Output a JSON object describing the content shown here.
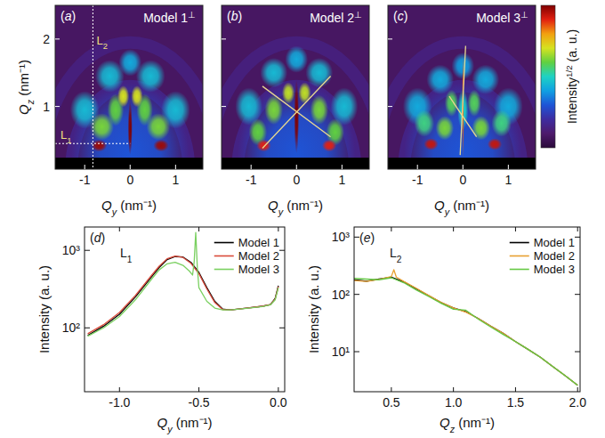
{
  "chart_data": [
    {
      "type": "heatmap",
      "panel": "(a)",
      "title": "Model 1⊥",
      "x_label": "Qy (nm⁻¹)",
      "y_label": "Qz (nm⁻¹)",
      "xlim": [
        -1.65,
        1.6
      ],
      "xticks": [
        -1,
        0,
        1
      ],
      "ylim": [
        0.07,
        2.5
      ],
      "yticks": [
        1,
        2
      ],
      "zlim": [
        0,
        1
      ],
      "background_value": 0.08,
      "mask_qz": [
        0.07,
        0.24
      ],
      "rings": [
        {
          "r": 1.3,
          "value": 0.17
        },
        {
          "r": 1.95,
          "value": 0.15
        }
      ],
      "spots": [
        {
          "qy": 0,
          "qz": 0.3,
          "wy": 1.3,
          "wz": 1.05,
          "value": 0.3
        },
        {
          "qy": -1.0,
          "qz": 0.95,
          "wy": 0.32,
          "wz": 0.28,
          "value": 0.45
        },
        {
          "qy": 1.0,
          "qz": 0.95,
          "wy": 0.32,
          "wz": 0.28,
          "value": 0.45
        },
        {
          "qy": -0.45,
          "qz": 1.45,
          "wy": 0.32,
          "wz": 0.24,
          "value": 0.45
        },
        {
          "qy": 0.45,
          "qz": 1.45,
          "wy": 0.32,
          "wz": 0.24,
          "value": 0.45
        },
        {
          "qy": 0,
          "qz": 1.65,
          "wy": 0.25,
          "wz": 0.2,
          "value": 0.42
        },
        {
          "qy": -0.62,
          "qz": 0.7,
          "wy": 0.26,
          "wz": 0.2,
          "value": 0.62
        },
        {
          "qy": 0.62,
          "qz": 0.7,
          "wy": 0.26,
          "wz": 0.2,
          "value": 0.62
        },
        {
          "qy": -0.32,
          "qz": 0.95,
          "wy": 0.18,
          "wz": 0.24,
          "value": 0.6
        },
        {
          "qy": 0.32,
          "qz": 0.95,
          "wy": 0.18,
          "wz": 0.24,
          "value": 0.6
        },
        {
          "qy": -0.15,
          "qz": 1.15,
          "wy": 0.13,
          "wz": 0.16,
          "value": 0.7
        },
        {
          "qy": 0.15,
          "qz": 1.15,
          "wy": 0.13,
          "wz": 0.16,
          "value": 0.7
        },
        {
          "qy": -0.68,
          "qz": 0.42,
          "wy": 0.17,
          "wz": 0.09,
          "value": 0.97
        },
        {
          "qy": 0.68,
          "qz": 0.42,
          "wy": 0.17,
          "wz": 0.09,
          "value": 0.97
        },
        {
          "qy": 0,
          "qz": 0.68,
          "wy": 0.05,
          "wz": 0.4,
          "value": 1.0
        }
      ],
      "cuts": [
        {
          "label": "L2",
          "qy": -0.82
        },
        {
          "label": "L1",
          "qz": 0.45
        }
      ]
    },
    {
      "type": "heatmap",
      "panel": "(b)",
      "title": "Model 2⊥",
      "x_label": "Qy (nm⁻¹)",
      "tick_labels": "x",
      "xlim": [
        -1.65,
        1.6
      ],
      "xticks": [
        -1,
        0,
        1
      ],
      "ylim": [
        0.07,
        2.5
      ],
      "yticks": [
        1,
        2
      ],
      "zlim": [
        0,
        1
      ],
      "background_value": 0.08,
      "mask_qz": [
        0.07,
        0.24
      ],
      "rings": [
        {
          "r": 1.3,
          "value": 0.17
        },
        {
          "r": 1.95,
          "value": 0.15
        }
      ],
      "spots": [
        {
          "qy": 0,
          "qz": 0.3,
          "wy": 1.3,
          "wz": 1.05,
          "value": 0.3
        },
        {
          "qy": -1.05,
          "qz": 1.0,
          "wy": 0.3,
          "wz": 0.28,
          "value": 0.45
        },
        {
          "qy": 1.05,
          "qz": 1.0,
          "wy": 0.3,
          "wz": 0.28,
          "value": 0.45
        },
        {
          "qy": -0.5,
          "qz": 1.5,
          "wy": 0.3,
          "wz": 0.22,
          "value": 0.45
        },
        {
          "qy": 0.5,
          "qz": 1.5,
          "wy": 0.3,
          "wz": 0.22,
          "value": 0.45
        },
        {
          "qy": 0,
          "qz": 1.7,
          "wy": 0.25,
          "wz": 0.2,
          "value": 0.42
        },
        {
          "qy": -0.85,
          "qz": 0.62,
          "wy": 0.2,
          "wz": 0.2,
          "value": 0.6
        },
        {
          "qy": 0.85,
          "qz": 0.62,
          "wy": 0.2,
          "wz": 0.2,
          "value": 0.6
        },
        {
          "qy": -0.5,
          "qz": 0.95,
          "wy": 0.2,
          "wz": 0.22,
          "value": 0.62
        },
        {
          "qy": 0.5,
          "qz": 0.95,
          "wy": 0.2,
          "wz": 0.22,
          "value": 0.62
        },
        {
          "qy": -0.18,
          "qz": 1.2,
          "wy": 0.14,
          "wz": 0.16,
          "value": 0.68
        },
        {
          "qy": 0.18,
          "qz": 1.2,
          "wy": 0.14,
          "wz": 0.16,
          "value": 0.68
        },
        {
          "qy": -0.72,
          "qz": 0.42,
          "wy": 0.16,
          "wz": 0.09,
          "value": 0.9
        },
        {
          "qy": 0.72,
          "qz": 0.42,
          "wy": 0.16,
          "wz": 0.09,
          "value": 0.9
        },
        {
          "qy": 0,
          "qz": 0.85,
          "wy": 0.055,
          "wz": 0.55,
          "value": 1.0
        }
      ],
      "lines": [
        {
          "qy": [
            -0.75,
            0.75
          ],
          "qz": [
            0.38,
            1.45
          ]
        },
        {
          "qy": [
            -0.75,
            0.75
          ],
          "qz": [
            1.3,
            0.55
          ]
        }
      ]
    },
    {
      "type": "heatmap",
      "panel": "(c)",
      "title": "Model 3⊥",
      "x_label": "Qy (nm⁻¹)",
      "tick_labels": "x",
      "xlim": [
        -1.65,
        1.6
      ],
      "xticks": [
        -1,
        0,
        1
      ],
      "ylim": [
        0.07,
        2.5
      ],
      "yticks": [
        1,
        2
      ],
      "zlim": [
        0,
        1
      ],
      "colorbar_label": "Intensity1/2 (a. u.)",
      "background_value": 0.08,
      "mask_qz": [
        0.07,
        0.24
      ],
      "rings": [
        {
          "r": 1.3,
          "value": 0.17
        },
        {
          "r": 1.95,
          "value": 0.15
        }
      ],
      "spots": [
        {
          "qy": 0,
          "qz": 0.3,
          "wy": 1.3,
          "wz": 1.05,
          "value": 0.3
        },
        {
          "qy": -1.0,
          "qz": 1.0,
          "wy": 0.32,
          "wz": 0.28,
          "value": 0.42
        },
        {
          "qy": 1.0,
          "qz": 1.0,
          "wy": 0.32,
          "wz": 0.28,
          "value": 0.42
        },
        {
          "qy": -0.5,
          "qz": 1.4,
          "wy": 0.3,
          "wz": 0.22,
          "value": 0.42
        },
        {
          "qy": 0.5,
          "qz": 1.4,
          "wy": 0.3,
          "wz": 0.22,
          "value": 0.42
        },
        {
          "qy": 0,
          "qz": 1.6,
          "wy": 0.25,
          "wz": 0.2,
          "value": 0.4
        },
        {
          "qy": -0.4,
          "qz": 0.68,
          "wy": 0.2,
          "wz": 0.18,
          "value": 0.62
        },
        {
          "qy": 0.4,
          "qz": 0.68,
          "wy": 0.2,
          "wz": 0.18,
          "value": 0.62
        },
        {
          "qy": -0.85,
          "qz": 0.75,
          "wy": 0.22,
          "wz": 0.2,
          "value": 0.55
        },
        {
          "qy": 0.85,
          "qz": 0.75,
          "wy": 0.22,
          "wz": 0.2,
          "value": 0.55
        },
        {
          "qy": -0.25,
          "qz": 1.05,
          "wy": 0.15,
          "wz": 0.2,
          "value": 0.58
        },
        {
          "qy": 0.25,
          "qz": 1.05,
          "wy": 0.15,
          "wz": 0.2,
          "value": 0.58
        },
        {
          "qy": -0.7,
          "qz": 0.44,
          "wy": 0.16,
          "wz": 0.09,
          "value": 0.93
        },
        {
          "qy": 0.7,
          "qz": 0.44,
          "wy": 0.16,
          "wz": 0.09,
          "value": 0.93
        },
        {
          "qy": 0,
          "qz": 0.95,
          "wy": 0.12,
          "wz": 0.3,
          "value": 0.5
        },
        {
          "qy": 0,
          "qz": 1.0,
          "wy": 0.02,
          "wz": 0.8,
          "value": 0.85
        }
      ],
      "lines": [
        {
          "qy": [
            -0.06,
            0.06
          ],
          "qz": [
            0.28,
            1.9
          ]
        },
        {
          "qy": [
            -0.3,
            0.3
          ],
          "qz": [
            1.15,
            0.55
          ]
        }
      ]
    },
    {
      "type": "line",
      "panel": "(d)",
      "annotation": "L1",
      "x_label": "Qy (nm⁻¹)",
      "y_label": "Intensity (a. u.)",
      "log": "y",
      "legend": "upper right",
      "xlim": [
        -1.22,
        0.04
      ],
      "xticks": [
        {
          "value": -1,
          "label": "-1.0"
        },
        {
          "value": -0.5,
          "label": "-0.5"
        },
        {
          "value": 0,
          "label": "0.0"
        }
      ],
      "ylim": [
        15,
        2000
      ],
      "yticks": [
        {
          "value": 100,
          "label": "10²"
        },
        {
          "value": 1000,
          "label": "10³"
        }
      ],
      "series": [
        {
          "name": "Model 1",
          "color": "#000000",
          "x": [
            -1.2,
            -1.1,
            -1.0,
            -0.9,
            -0.8,
            -0.75,
            -0.7,
            -0.65,
            -0.6,
            -0.55,
            -0.5,
            -0.45,
            -0.4,
            -0.35,
            -0.3,
            -0.2,
            -0.1,
            -0.05,
            -0.02,
            0.0
          ],
          "values": [
            80,
            105,
            150,
            250,
            450,
            600,
            760,
            830,
            820,
            700,
            520,
            330,
            220,
            175,
            170,
            180,
            190,
            200,
            240,
            350
          ]
        },
        {
          "name": "Model 2",
          "color": "#d94a3a",
          "x": [
            -1.2,
            -1.1,
            -1.0,
            -0.9,
            -0.8,
            -0.75,
            -0.7,
            -0.65,
            -0.6,
            -0.55,
            -0.5,
            -0.45,
            -0.4,
            -0.35,
            -0.3,
            -0.2,
            -0.1,
            -0.05,
            -0.02,
            0.0
          ],
          "values": [
            84,
            110,
            158,
            262,
            470,
            625,
            780,
            845,
            810,
            680,
            500,
            318,
            212,
            172,
            170,
            180,
            190,
            200,
            235,
            340
          ]
        },
        {
          "name": "Model 3",
          "color": "#7ad060",
          "x": [
            -1.2,
            -1.1,
            -1.0,
            -0.9,
            -0.8,
            -0.75,
            -0.7,
            -0.65,
            -0.6,
            -0.56,
            -0.54,
            -0.53,
            -0.52,
            -0.51,
            -0.5,
            -0.45,
            -0.4,
            -0.35,
            -0.3,
            -0.2,
            -0.1,
            -0.05,
            -0.02,
            0.0
          ],
          "values": [
            78,
            100,
            140,
            230,
            420,
            560,
            670,
            700,
            640,
            540,
            480,
            700,
            1700,
            600,
            330,
            220,
            180,
            170,
            170,
            178,
            188,
            198,
            230,
            330
          ]
        }
      ]
    },
    {
      "type": "line",
      "panel": "(e)",
      "annotation": "L2",
      "x_label": "Qz (nm⁻¹)",
      "y_label": "Intensity (a. u.)",
      "log": "y",
      "legend": "upper right",
      "xlim": [
        0.2,
        2.02
      ],
      "xticks": [
        0.5,
        {
          "value": 1,
          "label": "1.0"
        },
        1.5,
        {
          "value": 2,
          "label": "2.0"
        }
      ],
      "ylim": [
        2,
        1500
      ],
      "yticks": [
        {
          "value": 10,
          "label": "10¹"
        },
        {
          "value": 100,
          "label": "10²"
        },
        {
          "value": 1000,
          "label": "10³"
        }
      ],
      "series": [
        {
          "name": "Model 1",
          "color": "#000000",
          "x": [
            0.2,
            0.3,
            0.4,
            0.5,
            0.6,
            0.7,
            0.8,
            0.9,
            1.0,
            1.1,
            1.2,
            1.3,
            1.4,
            1.5,
            1.6,
            1.7,
            1.8,
            1.9,
            2.0
          ],
          "values": [
            180,
            170,
            185,
            200,
            165,
            125,
            95,
            72,
            58,
            50,
            38,
            28,
            21,
            15,
            11,
            8,
            5.5,
            3.8,
            2.6
          ]
        },
        {
          "name": "Model 2",
          "color": "#e8a030",
          "x": [
            0.2,
            0.3,
            0.4,
            0.5,
            0.52,
            0.54,
            0.6,
            0.7,
            0.8,
            0.9,
            1.0,
            1.1,
            1.2,
            1.3,
            1.4,
            1.5,
            1.6,
            1.7,
            1.8,
            1.9,
            2.0
          ],
          "values": [
            175,
            168,
            182,
            205,
            270,
            200,
            168,
            128,
            96,
            73,
            58,
            49,
            38,
            28,
            21,
            15,
            11,
            8,
            5.5,
            3.8,
            2.6
          ]
        },
        {
          "name": "Model 3",
          "color": "#66c844",
          "x": [
            0.2,
            0.3,
            0.4,
            0.5,
            0.6,
            0.7,
            0.8,
            0.9,
            1.0,
            1.1,
            1.2,
            1.3,
            1.4,
            1.5,
            1.6,
            1.7,
            1.8,
            1.9,
            2.0
          ],
          "values": [
            190,
            185,
            180,
            195,
            160,
            120,
            92,
            70,
            55,
            53,
            37,
            27,
            20,
            15,
            11,
            8,
            5.5,
            3.8,
            2.6
          ]
        }
      ]
    }
  ]
}
